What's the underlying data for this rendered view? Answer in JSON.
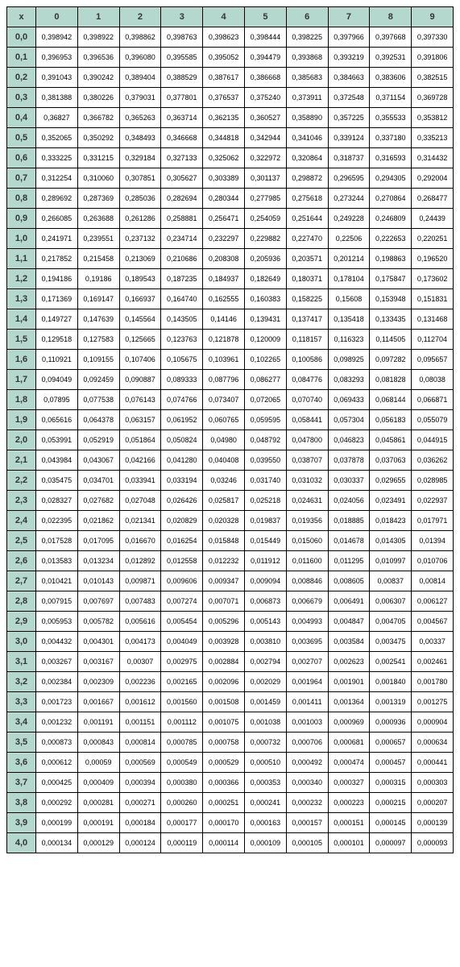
{
  "table": {
    "type": "table",
    "header_bg": "#b5d8ce",
    "border_color": "#000000",
    "font_family": "Verdana",
    "header_fontsize": 11,
    "cell_fontsize": 9,
    "corner_label": "x",
    "columns": [
      "0",
      "1",
      "2",
      "3",
      "4",
      "5",
      "6",
      "7",
      "8",
      "9"
    ],
    "row_labels": [
      "0,0",
      "0,1",
      "0,2",
      "0,3",
      "0,4",
      "0,5",
      "0,6",
      "0,7",
      "0,8",
      "0,9",
      "1,0",
      "1,1",
      "1,2",
      "1,3",
      "1,4",
      "1,5",
      "1,6",
      "1,7",
      "1,8",
      "1,9",
      "2,0",
      "2,1",
      "2,2",
      "2,3",
      "2,4",
      "2,5",
      "2,6",
      "2,7",
      "2,8",
      "2,9",
      "3,0",
      "3,1",
      "3,2",
      "3,3",
      "3,4",
      "3,5",
      "3,6",
      "3,7",
      "3,8",
      "3,9",
      "4,0"
    ],
    "rows": [
      [
        "0,398942",
        "0,398922",
        "0,398862",
        "0,398763",
        "0,398623",
        "0,398444",
        "0,398225",
        "0,397966",
        "0,397668",
        "0,397330"
      ],
      [
        "0,396953",
        "0,396536",
        "0,396080",
        "0,395585",
        "0,395052",
        "0,394479",
        "0,393868",
        "0,393219",
        "0,392531",
        "0,391806"
      ],
      [
        "0,391043",
        "0,390242",
        "0,389404",
        "0,388529",
        "0,387617",
        "0,386668",
        "0,385683",
        "0,384663",
        "0,383606",
        "0,382515"
      ],
      [
        "0,381388",
        "0,380226",
        "0,379031",
        "0,377801",
        "0,376537",
        "0,375240",
        "0,373911",
        "0,372548",
        "0,371154",
        "0,369728"
      ],
      [
        "0,36827",
        "0,366782",
        "0,365263",
        "0,363714",
        "0,362135",
        "0,360527",
        "0,358890",
        "0,357225",
        "0,355533",
        "0,353812"
      ],
      [
        "0,352065",
        "0,350292",
        "0,348493",
        "0,346668",
        "0,344818",
        "0,342944",
        "0,341046",
        "0,339124",
        "0,337180",
        "0,335213"
      ],
      [
        "0,333225",
        "0,331215",
        "0,329184",
        "0,327133",
        "0,325062",
        "0,322972",
        "0,320864",
        "0,318737",
        "0,316593",
        "0,314432"
      ],
      [
        "0,312254",
        "0,310060",
        "0,307851",
        "0,305627",
        "0,303389",
        "0,301137",
        "0,298872",
        "0,296595",
        "0,294305",
        "0,292004"
      ],
      [
        "0,289692",
        "0,287369",
        "0,285036",
        "0,282694",
        "0,280344",
        "0,277985",
        "0,275618",
        "0,273244",
        "0,270864",
        "0,268477"
      ],
      [
        "0,266085",
        "0,263688",
        "0,261286",
        "0,258881",
        "0,256471",
        "0,254059",
        "0,251644",
        "0,249228",
        "0,246809",
        "0,24439"
      ],
      [
        "0,241971",
        "0,239551",
        "0,237132",
        "0,234714",
        "0,232297",
        "0,229882",
        "0,227470",
        "0,22506",
        "0,222653",
        "0,220251"
      ],
      [
        "0,217852",
        "0,215458",
        "0,213069",
        "0,210686",
        "0,208308",
        "0,205936",
        "0,203571",
        "0,201214",
        "0,198863",
        "0,196520"
      ],
      [
        "0,194186",
        "0,19186",
        "0,189543",
        "0,187235",
        "0,184937",
        "0,182649",
        "0,180371",
        "0,178104",
        "0,175847",
        "0,173602"
      ],
      [
        "0,171369",
        "0,169147",
        "0,166937",
        "0,164740",
        "0,162555",
        "0,160383",
        "0,158225",
        "0,15608",
        "0,153948",
        "0,151831"
      ],
      [
        "0,149727",
        "0,147639",
        "0,145564",
        "0,143505",
        "0,14146",
        "0,139431",
        "0,137417",
        "0,135418",
        "0,133435",
        "0,131468"
      ],
      [
        "0,129518",
        "0,127583",
        "0,125665",
        "0,123763",
        "0,121878",
        "0,120009",
        "0,118157",
        "0,116323",
        "0,114505",
        "0,112704"
      ],
      [
        "0,110921",
        "0,109155",
        "0,107406",
        "0,105675",
        "0,103961",
        "0,102265",
        "0,100586",
        "0,098925",
        "0,097282",
        "0,095657"
      ],
      [
        "0,094049",
        "0,092459",
        "0,090887",
        "0,089333",
        "0,087796",
        "0,086277",
        "0,084776",
        "0,083293",
        "0,081828",
        "0,08038"
      ],
      [
        "0,07895",
        "0,077538",
        "0,076143",
        "0,074766",
        "0,073407",
        "0,072065",
        "0,070740",
        "0,069433",
        "0,068144",
        "0,066871"
      ],
      [
        "0,065616",
        "0,064378",
        "0,063157",
        "0,061952",
        "0,060765",
        "0,059595",
        "0,058441",
        "0,057304",
        "0,056183",
        "0,055079"
      ],
      [
        "0,053991",
        "0,052919",
        "0,051864",
        "0,050824",
        "0,04980",
        "0,048792",
        "0,047800",
        "0,046823",
        "0,045861",
        "0,044915"
      ],
      [
        "0,043984",
        "0,043067",
        "0,042166",
        "0,041280",
        "0,040408",
        "0,039550",
        "0,038707",
        "0,037878",
        "0,037063",
        "0,036262"
      ],
      [
        "0,035475",
        "0,034701",
        "0,033941",
        "0,033194",
        "0,03246",
        "0,031740",
        "0,031032",
        "0,030337",
        "0,029655",
        "0,028985"
      ],
      [
        "0,028327",
        "0,027682",
        "0,027048",
        "0,026426",
        "0,025817",
        "0,025218",
        "0,024631",
        "0,024056",
        "0,023491",
        "0,022937"
      ],
      [
        "0,022395",
        "0,021862",
        "0,021341",
        "0,020829",
        "0,020328",
        "0,019837",
        "0,019356",
        "0,018885",
        "0,018423",
        "0,017971"
      ],
      [
        "0,017528",
        "0,017095",
        "0,016670",
        "0,016254",
        "0,015848",
        "0,015449",
        "0,015060",
        "0,014678",
        "0,014305",
        "0,01394"
      ],
      [
        "0,013583",
        "0,013234",
        "0,012892",
        "0,012558",
        "0,012232",
        "0,011912",
        "0,011600",
        "0,011295",
        "0,010997",
        "0,010706"
      ],
      [
        "0,010421",
        "0,010143",
        "0,009871",
        "0,009606",
        "0,009347",
        "0,009094",
        "0,008846",
        "0,008605",
        "0,00837",
        "0,00814"
      ],
      [
        "0,007915",
        "0,007697",
        "0,007483",
        "0,007274",
        "0,007071",
        "0,006873",
        "0,006679",
        "0,006491",
        "0,006307",
        "0,006127"
      ],
      [
        "0,005953",
        "0,005782",
        "0,005616",
        "0,005454",
        "0,005296",
        "0,005143",
        "0,004993",
        "0,004847",
        "0,004705",
        "0,004567"
      ],
      [
        "0,004432",
        "0,004301",
        "0,004173",
        "0,004049",
        "0,003928",
        "0,003810",
        "0,003695",
        "0,003584",
        "0,003475",
        "0,00337"
      ],
      [
        "0,003267",
        "0,003167",
        "0,00307",
        "0,002975",
        "0,002884",
        "0,002794",
        "0,002707",
        "0,002623",
        "0,002541",
        "0,002461"
      ],
      [
        "0,002384",
        "0,002309",
        "0,002236",
        "0,002165",
        "0,002096",
        "0,002029",
        "0,001964",
        "0,001901",
        "0,001840",
        "0,001780"
      ],
      [
        "0,001723",
        "0,001667",
        "0,001612",
        "0,001560",
        "0,001508",
        "0,001459",
        "0,001411",
        "0,001364",
        "0,001319",
        "0,001275"
      ],
      [
        "0,001232",
        "0,001191",
        "0,001151",
        "0,001112",
        "0,001075",
        "0,001038",
        "0,001003",
        "0,000969",
        "0,000936",
        "0,000904"
      ],
      [
        "0,000873",
        "0,000843",
        "0,000814",
        "0,000785",
        "0,000758",
        "0,000732",
        "0,000706",
        "0,000681",
        "0,000657",
        "0,000634"
      ],
      [
        "0,000612",
        "0,00059",
        "0,000569",
        "0,000549",
        "0,000529",
        "0,000510",
        "0,000492",
        "0,000474",
        "0,000457",
        "0,000441"
      ],
      [
        "0,000425",
        "0,000409",
        "0,000394",
        "0,000380",
        "0,000366",
        "0,000353",
        "0,000340",
        "0,000327",
        "0,000315",
        "0,000303"
      ],
      [
        "0,000292",
        "0,000281",
        "0,000271",
        "0,000260",
        "0,000251",
        "0,000241",
        "0,000232",
        "0,000223",
        "0,000215",
        "0,000207"
      ],
      [
        "0,000199",
        "0,000191",
        "0,000184",
        "0,000177",
        "0,000170",
        "0,000163",
        "0,000157",
        "0,000151",
        "0,000145",
        "0,000139"
      ],
      [
        "0,000134",
        "0,000129",
        "0,000124",
        "0,000119",
        "0,000114",
        "0,000109",
        "0,000105",
        "0,000101",
        "0,000097",
        "0,000093"
      ]
    ]
  }
}
